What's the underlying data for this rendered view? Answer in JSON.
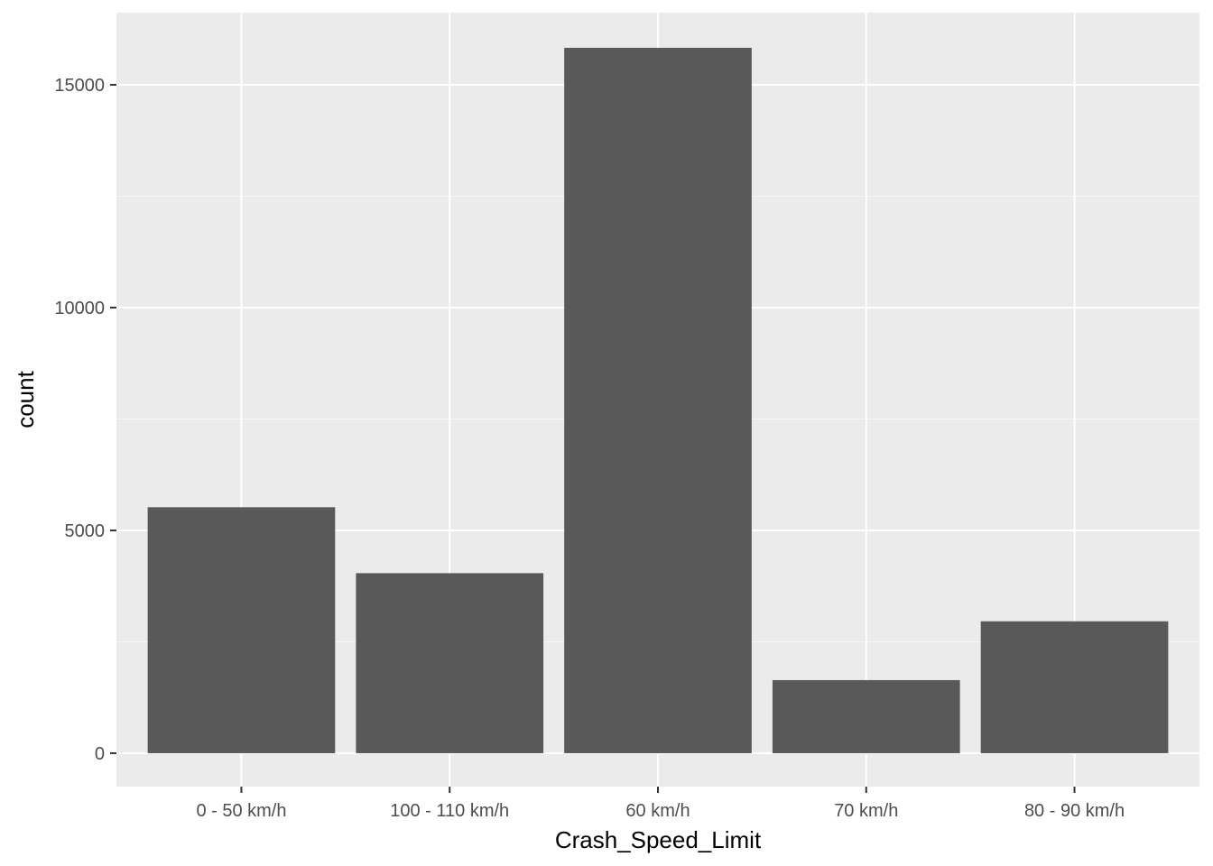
{
  "chart_data": {
    "type": "bar",
    "title": "",
    "xlabel": "Crash_Speed_Limit",
    "ylabel": "count",
    "categories": [
      "0 - 50 km/h",
      "100 - 110 km/h",
      "60 km/h",
      "70 km/h",
      "80 - 90 km/h"
    ],
    "values": [
      5520,
      4040,
      15830,
      1640,
      2960
    ],
    "ylim": [
      -750,
      16620
    ],
    "yticks": [
      0,
      5000,
      10000,
      15000
    ],
    "ytick_labels": [
      "0",
      "5000",
      "10000",
      "15000"
    ],
    "grid": true,
    "legend": "none",
    "colors": {
      "bar": "#595959",
      "panel": "#ebebeb",
      "grid_major": "#ffffff",
      "grid_minor": "#f5f5f5",
      "tick": "#333333"
    }
  }
}
